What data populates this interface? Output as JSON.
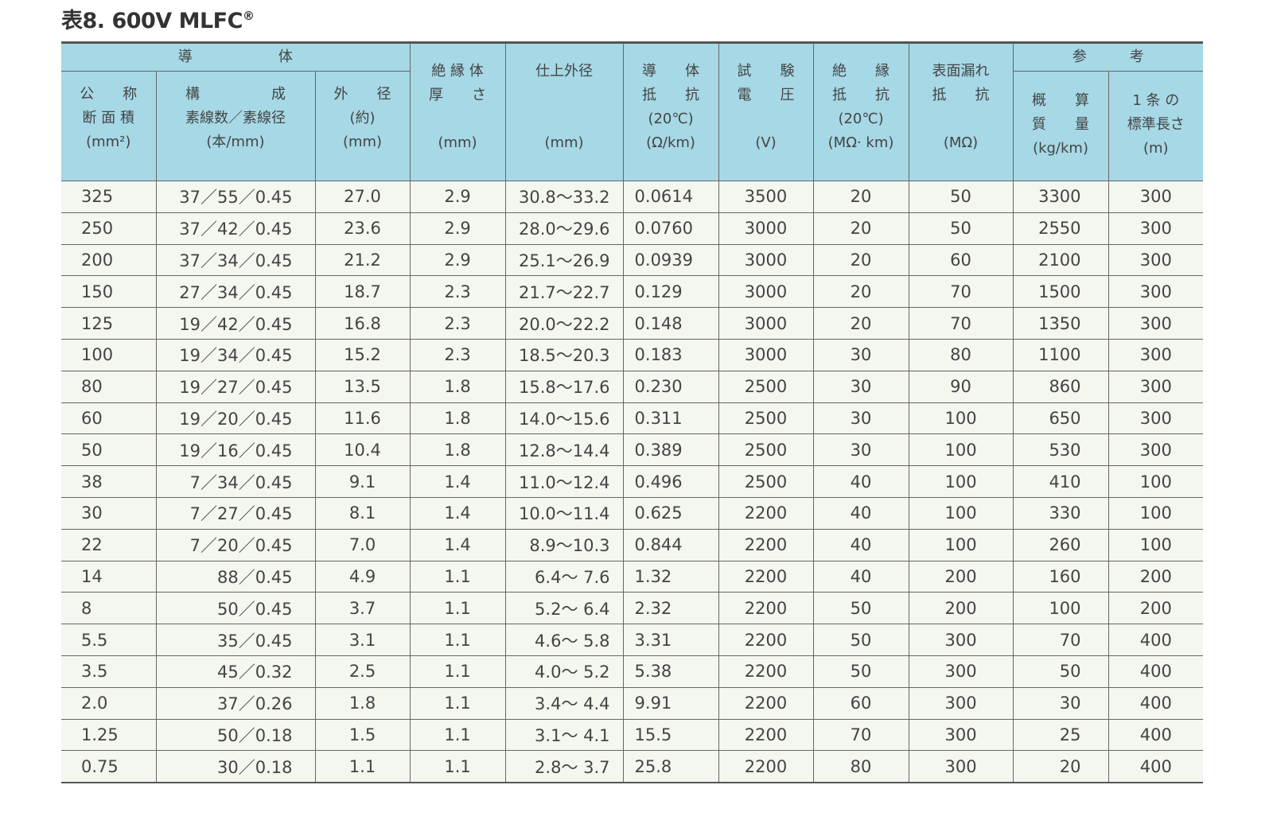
{
  "title": {
    "text": "表8. 600V MLFC",
    "mark": "®"
  },
  "header": {
    "conductor_group": "導　　　　　　体",
    "reference_group": "参　　　考",
    "columns": [
      "公　　称\n断 面 積\n(mm²)",
      "構　　　　　成\n素線数／素線径\n(本/mm)",
      "外　　径\n(約)\n(mm)",
      "絶 縁 体\n厚　　さ\n\n(mm)",
      "仕上外径\n\n\n(mm)",
      "導　　体\n抵　　抗\n(20℃)\n(Ω/km)",
      "試　　験\n電　　圧\n\n(V)",
      "絶　　縁\n抵　　抗\n(20℃)\n(MΩ· km)",
      "表面漏れ\n抵　　抗\n\n(MΩ)",
      "概　　算\n質　　量\n(kg/km)",
      "1 条 の\n標準長さ\n(m)"
    ]
  },
  "rows": [
    [
      "325",
      "37／55／0.45",
      "27.0",
      "2.9",
      "30.8～33.2",
      "0.0614",
      "3500",
      "20",
      "50",
      "3300",
      "300"
    ],
    [
      "250",
      "37／42／0.45",
      "23.6",
      "2.9",
      "28.0～29.6",
      "0.0760",
      "3000",
      "20",
      "50",
      "2550",
      "300"
    ],
    [
      "200",
      "37／34／0.45",
      "21.2",
      "2.9",
      "25.1～26.9",
      "0.0939",
      "3000",
      "20",
      "60",
      "2100",
      "300"
    ],
    [
      "150",
      "27／34／0.45",
      "18.7",
      "2.3",
      "21.7～22.7",
      "0.129",
      "3000",
      "20",
      "70",
      "1500",
      "300"
    ],
    [
      "125",
      "19／42／0.45",
      "16.8",
      "2.3",
      "20.0～22.2",
      "0.148",
      "3000",
      "20",
      "70",
      "1350",
      "300"
    ],
    [
      "100",
      "19／34／0.45",
      "15.2",
      "2.3",
      "18.5～20.3",
      "0.183",
      "3000",
      "30",
      "80",
      "1100",
      "300"
    ],
    [
      "80",
      "19／27／0.45",
      "13.5",
      "1.8",
      "15.8～17.6",
      "0.230",
      "2500",
      "30",
      "90",
      "860",
      "300"
    ],
    [
      "60",
      "19／20／0.45",
      "11.6",
      "1.8",
      "14.0～15.6",
      "0.311",
      "2500",
      "30",
      "100",
      "650",
      "300"
    ],
    [
      "50",
      "19／16／0.45",
      "10.4",
      "1.8",
      "12.8～14.4",
      "0.389",
      "2500",
      "30",
      "100",
      "530",
      "300"
    ],
    [
      "38",
      "7／34／0.45",
      "9.1",
      "1.4",
      "11.0～12.4",
      "0.496",
      "2500",
      "40",
      "100",
      "410",
      "100"
    ],
    [
      "30",
      "7／27／0.45",
      "8.1",
      "1.4",
      "10.0～11.4",
      "0.625",
      "2200",
      "40",
      "100",
      "330",
      "100"
    ],
    [
      "22",
      "7／20／0.45",
      "7.0",
      "1.4",
      "8.9～10.3",
      "0.844",
      "2200",
      "40",
      "100",
      "260",
      "100"
    ],
    [
      "14",
      "88／0.45",
      "4.9",
      "1.1",
      "6.4～ 7.6",
      "1.32",
      "2200",
      "40",
      "200",
      "160",
      "200"
    ],
    [
      "8",
      "50／0.45",
      "3.7",
      "1.1",
      "5.2～ 6.4",
      "2.32",
      "2200",
      "50",
      "200",
      "100",
      "200"
    ],
    [
      "5.5",
      "35／0.45",
      "3.1",
      "1.1",
      "4.6～ 5.8",
      "3.31",
      "2200",
      "50",
      "300",
      "70",
      "400"
    ],
    [
      "3.5",
      "45／0.32",
      "2.5",
      "1.1",
      "4.0～ 5.2",
      "5.38",
      "2200",
      "50",
      "300",
      "50",
      "400"
    ],
    [
      "2.0",
      "37／0.26",
      "1.8",
      "1.1",
      "3.4～ 4.4",
      "9.91",
      "2200",
      "60",
      "300",
      "30",
      "400"
    ],
    [
      "1.25",
      "50／0.18",
      "1.5",
      "1.1",
      "3.1～ 4.1",
      "15.5",
      "2200",
      "70",
      "300",
      "25",
      "400"
    ],
    [
      "0.75",
      "30／0.18",
      "1.1",
      "1.1",
      "2.8～ 3.7",
      "25.8",
      "2200",
      "80",
      "300",
      "20",
      "400"
    ]
  ]
}
